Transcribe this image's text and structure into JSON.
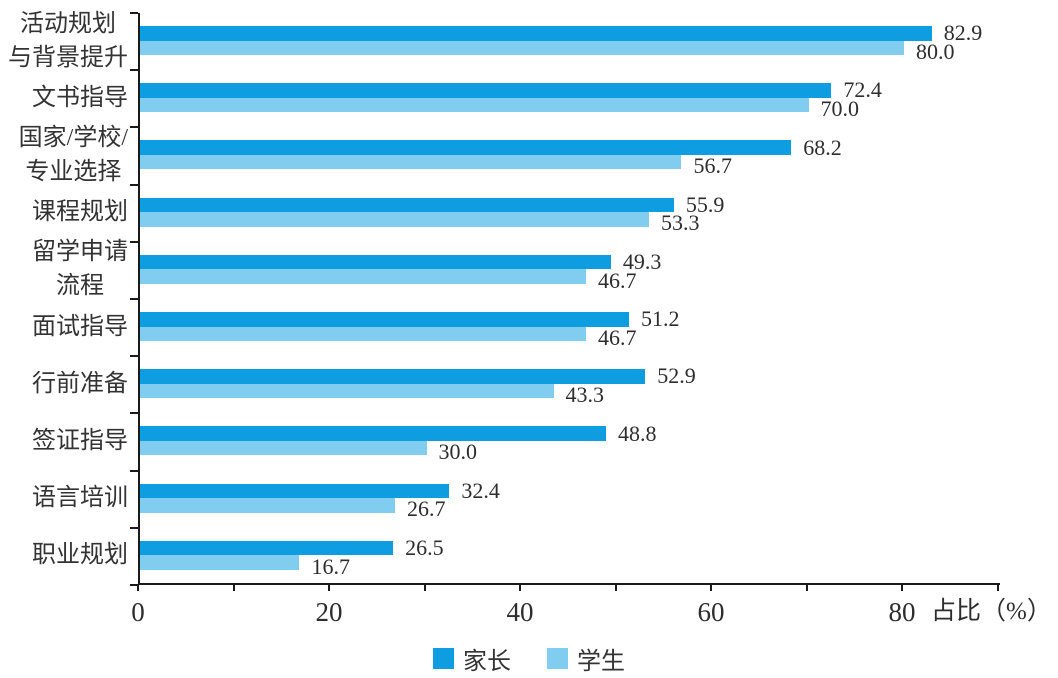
{
  "chart_data": {
    "type": "bar",
    "orientation": "horizontal",
    "title": "",
    "xlabel": "占比（%）",
    "ylabel": "",
    "xlim": [
      0,
      90
    ],
    "x_major_ticks": [
      0,
      20,
      40,
      60,
      80
    ],
    "x_minor_ticks": [
      10,
      30,
      50,
      70,
      90
    ],
    "grid": false,
    "legend_position": "bottom",
    "categories": [
      "活动规划与背景提升",
      "文书指导",
      "国家/学校/专业选择",
      "课程规划",
      "留学申请流程",
      "面试指导",
      "行前准备",
      "签证指导",
      "语言培训",
      "职业规划"
    ],
    "category_lines": [
      [
        "活动规划",
        "与背景提升"
      ],
      [
        "文书指导"
      ],
      [
        "国家/学校/",
        "专业选择"
      ],
      [
        "课程规划"
      ],
      [
        "留学申请",
        "流程"
      ],
      [
        "面试指导"
      ],
      [
        "行前准备"
      ],
      [
        "签证指导"
      ],
      [
        "语言培训"
      ],
      [
        "职业规划"
      ]
    ],
    "series": [
      {
        "name": "家长",
        "color": "#0d9de0",
        "values": [
          82.9,
          72.4,
          68.2,
          55.9,
          49.3,
          51.2,
          52.9,
          48.8,
          32.4,
          26.5
        ]
      },
      {
        "name": "学生",
        "color": "#81cdf0",
        "values": [
          80.0,
          70.0,
          56.7,
          53.3,
          46.7,
          46.7,
          43.3,
          30.0,
          26.7,
          16.7
        ]
      }
    ]
  },
  "colors": {
    "axis": "#1a1a1a",
    "text": "#2d2d2d",
    "parent_bar": "#0d9de0",
    "student_bar": "#81cdf0"
  }
}
